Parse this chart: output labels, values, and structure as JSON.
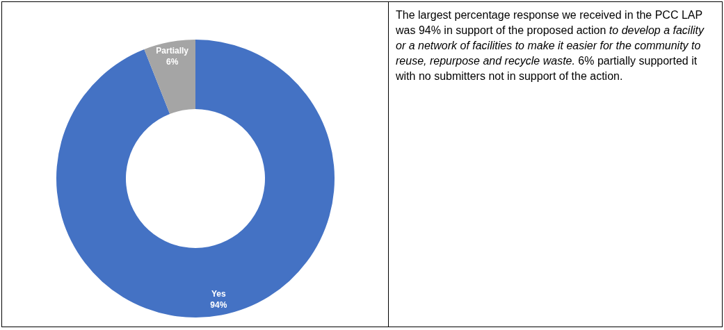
{
  "chart_data": {
    "type": "donut",
    "categories": [
      "Yes",
      "Partially"
    ],
    "values": [
      94,
      6
    ],
    "colors": [
      "#4472c4",
      "#a5a5a5"
    ],
    "value_labels": [
      "94%",
      "6%"
    ],
    "legend": false,
    "annotations": [
      "The largest percentage response we received in the PCC LAP was 94% in support of the proposed action ",
      "to develop a facility or a network of facilities to make it easier for the community to reuse, repurpose and recycle waste.",
      " 6% partially supported it with no submitters not in support of the action."
    ]
  }
}
